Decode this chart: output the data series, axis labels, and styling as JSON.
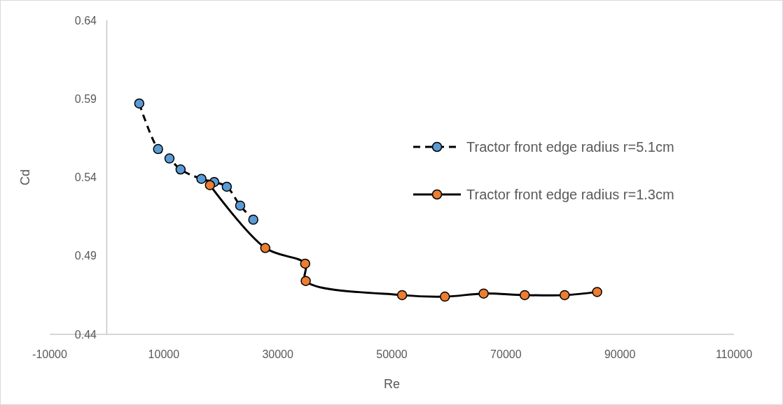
{
  "chart_data": {
    "type": "line",
    "xlabel": "Re",
    "ylabel": "Cd",
    "xlim": [
      -10000,
      110000
    ],
    "xticks": [
      -10000,
      10000,
      30000,
      50000,
      70000,
      90000,
      110000
    ],
    "ylim": [
      0.44,
      0.64
    ],
    "yticks": [
      0.44,
      0.49,
      0.54,
      0.59,
      0.64
    ],
    "grid": false,
    "legend": "right",
    "marker": "circle",
    "series": [
      {
        "name": "Tractor front edge radius r=5.1cm",
        "color": "#5b9bd5",
        "line_style": "dashed",
        "x": [
          5700,
          9000,
          11000,
          12950,
          16600,
          18850,
          21050,
          23400,
          25700
        ],
        "values": [
          0.587,
          0.558,
          0.552,
          0.545,
          0.539,
          0.537,
          0.534,
          0.522,
          0.513
        ]
      },
      {
        "name": "Tractor front edge radius r=1.3cm",
        "color": "#ed7d31",
        "line_style": "solid",
        "x": [
          18100,
          27800,
          34800,
          34900,
          51800,
          59300,
          66100,
          73300,
          80300,
          86000
        ],
        "values": [
          0.535,
          0.495,
          0.485,
          0.474,
          0.465,
          0.464,
          0.466,
          0.465,
          0.465,
          0.467
        ]
      }
    ]
  }
}
